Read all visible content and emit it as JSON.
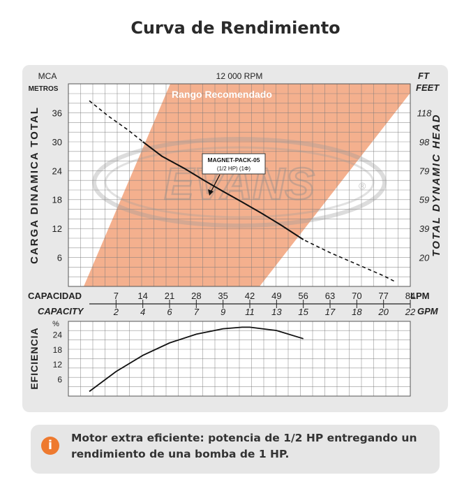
{
  "page": {
    "title": "Curva de Rendimiento",
    "note": "Motor extra eficiente: potencia de 1/2 HP entregando un rendimiento de una bomba de 1 HP.",
    "note_icon": "info-icon",
    "accent_color": "#ee7a2f"
  },
  "chart_data": [
    {
      "type": "line",
      "title": "12 000 RPM",
      "left_unit": [
        "MCA",
        "METROS"
      ],
      "right_unit": [
        "FT",
        "FEET"
      ],
      "ylabel": "CARGA DINAMICA TOTAL",
      "ylabel_right": "TOTAL DYNAMIC HEAD",
      "xlabel": "CAPACIDAD",
      "xlabel_unit": "LPM",
      "xlabel_secondary": "CAPACITY",
      "xlabel_secondary_unit": "GPM",
      "x_ticks_lpm": [
        7,
        14,
        21,
        28,
        35,
        42,
        49,
        56,
        63,
        70,
        77,
        84
      ],
      "x_ticks_gpm": [
        2,
        4,
        6,
        7,
        9,
        11,
        13,
        15,
        17,
        18,
        20,
        22
      ],
      "y_ticks_m": [
        6,
        12,
        18,
        24,
        30,
        36
      ],
      "y_ticks_ft": [
        20,
        39,
        59,
        79,
        98,
        118
      ],
      "xlim": [
        0,
        84
      ],
      "ylim": [
        0,
        42
      ],
      "grid": true,
      "recommended_range_label": "Rango Recomendado",
      "recommended_range_color": "#f2a27a",
      "watermark": "EVANS",
      "curve_label": [
        "MAGNET-PACK-05",
        "(1/2 HP) (1Φ)"
      ],
      "series": [
        {
          "name": "MAGNET-PACK-05",
          "x": [
            0,
            5,
            10,
            14,
            19,
            25,
            30,
            35,
            40,
            45,
            50,
            56,
            63,
            70,
            77,
            80
          ],
          "y": [
            38.5,
            35.3,
            32.5,
            30.0,
            27.0,
            24.4,
            22.0,
            19.7,
            17.5,
            15.2,
            12.8,
            9.7,
            7.0,
            4.6,
            2.2,
            1.0
          ],
          "solid_range": [
            14,
            56
          ]
        }
      ]
    },
    {
      "type": "line",
      "ylabel": "EFICIENCIA",
      "y_unit": "%",
      "y_ticks": [
        6,
        12,
        18,
        24
      ],
      "ylim": [
        0,
        30
      ],
      "xlim": [
        0,
        84
      ],
      "grid": true,
      "series": [
        {
          "x": [
            0,
            7,
            14,
            21,
            28,
            35,
            40,
            42,
            49,
            56
          ],
          "y": [
            1,
            9,
            15.5,
            20.5,
            24.0,
            26.2,
            26.8,
            26.8,
            25.5,
            22.2
          ]
        }
      ]
    }
  ]
}
